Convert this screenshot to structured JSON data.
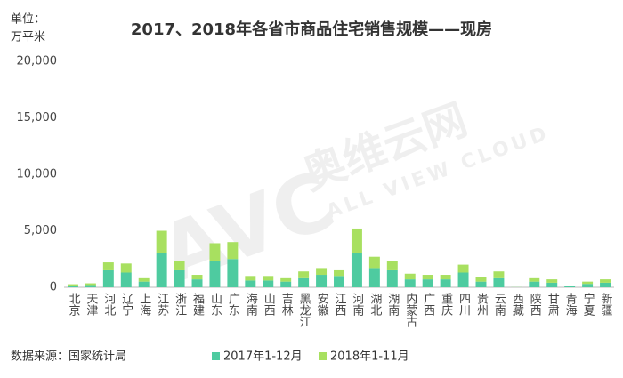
{
  "chart_data": {
    "type": "stacked_bar",
    "title": "2017、2018年各省市商品住宅销售规模——现房",
    "y_label": [
      "单位：",
      "万平米"
    ],
    "source": "数据来源：国家统计局",
    "watermark": [
      "AVC",
      "奥维云网",
      "ALL VIEW CLOUD"
    ],
    "categories": [
      "北京",
      "天津",
      "河北",
      "辽宁",
      "上海",
      "江苏",
      "浙江",
      "福建",
      "山东",
      "广东",
      "海南",
      "山西",
      "吉林",
      "黑龙江",
      "安徽",
      "江西",
      "河南",
      "湖北",
      "湖南",
      "内蒙古",
      "广西",
      "重庆",
      "四川",
      "贵州",
      "云南",
      "西藏",
      "陕西",
      "甘肃",
      "青海",
      "宁夏",
      "新疆"
    ],
    "series": [
      {
        "name": "2017年1-12月",
        "color": "#4ecba0",
        "values": [
          150,
          200,
          1500,
          1300,
          500,
          3000,
          1500,
          700,
          2300,
          2500,
          600,
          600,
          500,
          800,
          1100,
          1000,
          3000,
          1700,
          1500,
          700,
          700,
          700,
          1300,
          500,
          800,
          10,
          500,
          400,
          80,
          300,
          400
        ]
      },
      {
        "name": "2018年1-11月",
        "color": "#a8e060",
        "values": [
          120,
          150,
          700,
          800,
          300,
          2000,
          800,
          400,
          1600,
          1500,
          400,
          400,
          300,
          600,
          600,
          500,
          2200,
          1000,
          800,
          500,
          400,
          400,
          700,
          400,
          600,
          10,
          300,
          300,
          60,
          200,
          300
        ]
      }
    ],
    "ylim": [
      0,
      20000
    ],
    "yticks": [
      0,
      {
        "value": 5000,
        "label": "5,000"
      },
      {
        "value": 10000,
        "label": "10,000"
      },
      {
        "value": 15000,
        "label": "15,000"
      },
      {
        "value": 20000,
        "label": "20,000"
      }
    ],
    "grid": false
  }
}
